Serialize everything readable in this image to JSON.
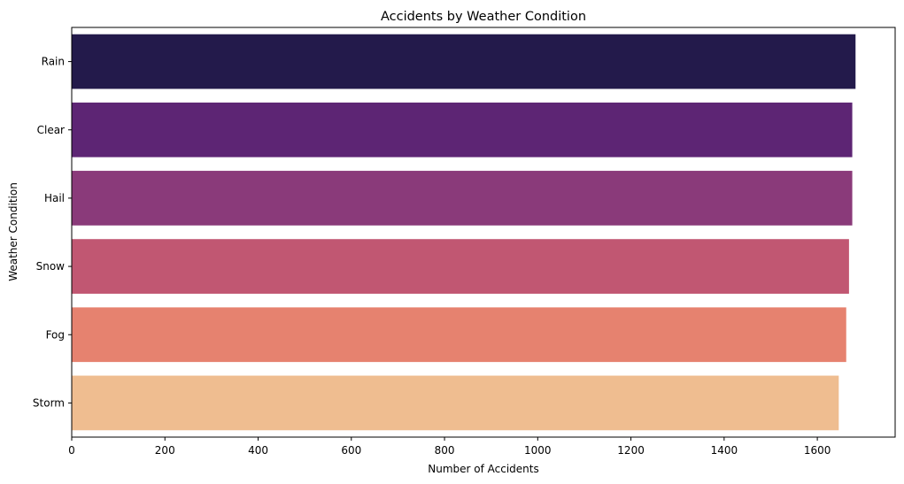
{
  "chart_data": {
    "type": "bar",
    "orientation": "horizontal",
    "title": "Accidents by Weather Condition",
    "xlabel": "Number of Accidents",
    "ylabel": "Weather Condition",
    "categories": [
      "Rain",
      "Clear",
      "Hail",
      "Snow",
      "Fog",
      "Storm"
    ],
    "values": [
      1682,
      1675,
      1675,
      1668,
      1662,
      1646
    ],
    "colors": [
      "#231a4b",
      "#5d2574",
      "#8a3a7a",
      "#c15772",
      "#e6826f",
      "#efbd90"
    ],
    "xlim": [
      0,
      1767
    ],
    "xticks": [
      0,
      200,
      400,
      600,
      800,
      1000,
      1200,
      1400,
      1600
    ],
    "xtick_labels": [
      "0",
      "200",
      "400",
      "600",
      "800",
      "1000",
      "1200",
      "1400",
      "1600"
    ],
    "grid": false,
    "legend": "none"
  }
}
